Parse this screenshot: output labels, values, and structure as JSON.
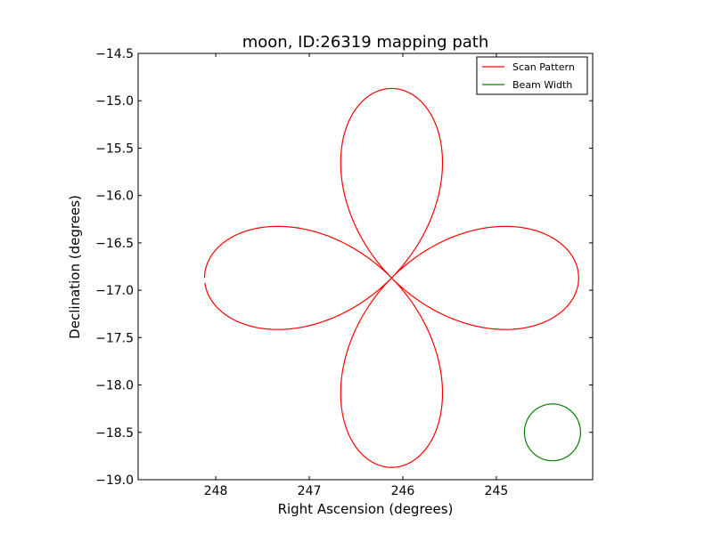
{
  "chart_data": {
    "type": "line",
    "title": "moon, ID:26319 mapping path",
    "xlabel": "Right Ascension (degrees)",
    "ylabel": "Declination (degrees)",
    "xlim": [
      248.83,
      243.97
    ],
    "ylim": [
      -19.0,
      -14.5
    ],
    "x_inverted": true,
    "xticks": [
      248,
      247,
      246,
      245
    ],
    "xtick_labels": [
      "248",
      "247",
      "246",
      "245"
    ],
    "yticks": [
      -14.5,
      -15.0,
      -15.5,
      -16.0,
      -16.5,
      -17.0,
      -17.5,
      -18.0,
      -18.5,
      -19.0
    ],
    "ytick_labels": [
      "−14.5",
      "−15.0",
      "−15.5",
      "−16.0",
      "−16.5",
      "−17.0",
      "−17.5",
      "−18.0",
      "−18.5",
      "−19.0"
    ],
    "legend_position": "top-right",
    "series": [
      {
        "name": "Scan Pattern",
        "color": "#ff0000",
        "pattern": "four-petal rose",
        "center": [
          246.12,
          -16.87
        ],
        "radius": 2.0,
        "start": [
          248.2,
          -16.87
        ]
      },
      {
        "name": "Beam Width",
        "color": "#008000",
        "pattern": "circle",
        "center": [
          244.4,
          -18.5
        ],
        "radius": 0.3
      }
    ]
  }
}
